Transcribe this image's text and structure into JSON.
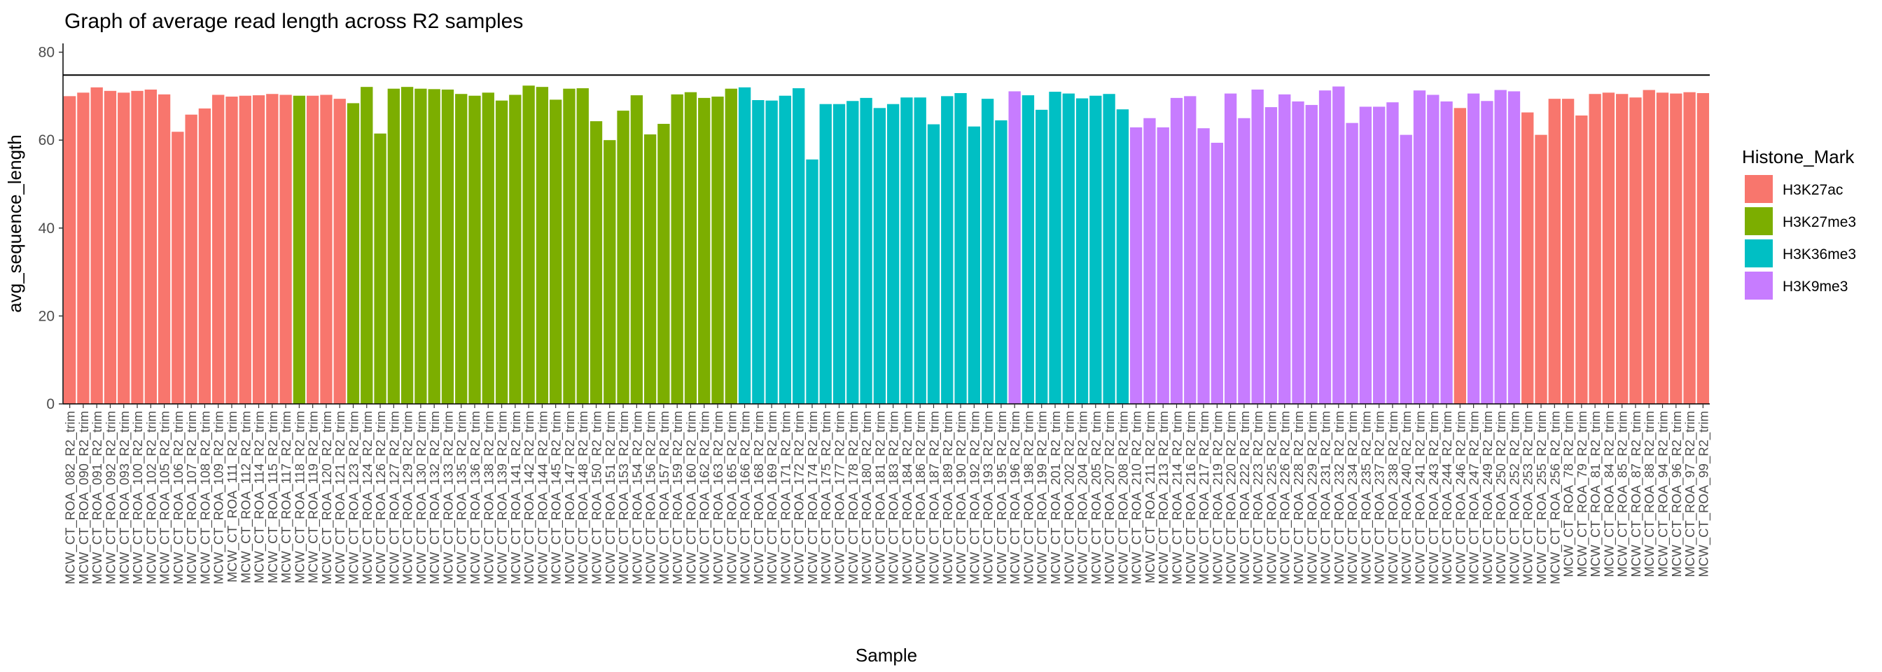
{
  "chart_data": {
    "type": "bar",
    "title": "Graph of average read length across R2 samples",
    "xlabel": "Sample",
    "ylabel": "avg_sequence_length",
    "ylim": [
      0,
      82
    ],
    "y_ticks": [
      0,
      20,
      40,
      60,
      80
    ],
    "reference_line_y": 74.8,
    "grid": false,
    "legend_position": "right",
    "legend_title": "Histone_Mark",
    "legend": [
      {
        "name": "H3K27ac",
        "color": "#F8766D"
      },
      {
        "name": "H3K27me3",
        "color": "#7CAE00"
      },
      {
        "name": "H3K36me3",
        "color": "#00BFC4"
      },
      {
        "name": "H3K9me3",
        "color": "#C77CFF"
      }
    ],
    "bars": [
      {
        "label": "MCW_CT_ROA_082_R2_trim",
        "value": 70.0,
        "group": "H3K27ac"
      },
      {
        "label": "MCW_CT_ROA_090_R2_trim",
        "value": 70.8,
        "group": "H3K27ac"
      },
      {
        "label": "MCW_CT_ROA_091_R2_trim",
        "value": 72.0,
        "group": "H3K27ac"
      },
      {
        "label": "MCW_CT_ROA_092_R2_trim",
        "value": 71.2,
        "group": "H3K27ac"
      },
      {
        "label": "MCW_CT_ROA_093_R2_trim",
        "value": 70.8,
        "group": "H3K27ac"
      },
      {
        "label": "MCW_CT_ROA_100_R2_trim",
        "value": 71.2,
        "group": "H3K27ac"
      },
      {
        "label": "MCW_CT_ROA_102_R2_trim",
        "value": 71.5,
        "group": "H3K27ac"
      },
      {
        "label": "MCW_CT_ROA_105_R2_trim",
        "value": 70.4,
        "group": "H3K27ac"
      },
      {
        "label": "MCW_CT_ROA_106_R2_trim",
        "value": 61.9,
        "group": "H3K27ac"
      },
      {
        "label": "MCW_CT_ROA_107_R2_trim",
        "value": 65.8,
        "group": "H3K27ac"
      },
      {
        "label": "MCW_CT_ROA_108_R2_trim",
        "value": 67.2,
        "group": "H3K27ac"
      },
      {
        "label": "MCW_CT_ROA_109_R2_trim",
        "value": 70.3,
        "group": "H3K27ac"
      },
      {
        "label": "MCW_CT_ROA_111_R2_trim",
        "value": 69.9,
        "group": "H3K27ac"
      },
      {
        "label": "MCW_CT_ROA_112_R2_trim",
        "value": 70.1,
        "group": "H3K27ac"
      },
      {
        "label": "MCW_CT_ROA_114_R2_trim",
        "value": 70.2,
        "group": "H3K27ac"
      },
      {
        "label": "MCW_CT_ROA_115_R2_trim",
        "value": 70.5,
        "group": "H3K27ac"
      },
      {
        "label": "MCW_CT_ROA_117_R2_trim",
        "value": 70.3,
        "group": "H3K27ac"
      },
      {
        "label": "MCW_CT_ROA_118_R2_trim",
        "value": 70.1,
        "group": "H3K27me3"
      },
      {
        "label": "MCW_CT_ROA_119_R2_trim",
        "value": 70.1,
        "group": "H3K27ac"
      },
      {
        "label": "MCW_CT_ROA_120_R2_trim",
        "value": 70.3,
        "group": "H3K27ac"
      },
      {
        "label": "MCW_CT_ROA_121_R2_trim",
        "value": 69.4,
        "group": "H3K27ac"
      },
      {
        "label": "MCW_CT_ROA_123_R2_trim",
        "value": 68.4,
        "group": "H3K27me3"
      },
      {
        "label": "MCW_CT_ROA_124_R2_trim",
        "value": 72.1,
        "group": "H3K27me3"
      },
      {
        "label": "MCW_CT_ROA_126_R2_trim",
        "value": 61.5,
        "group": "H3K27me3"
      },
      {
        "label": "MCW_CT_ROA_127_R2_trim",
        "value": 71.7,
        "group": "H3K27me3"
      },
      {
        "label": "MCW_CT_ROA_129_R2_trim",
        "value": 72.1,
        "group": "H3K27me3"
      },
      {
        "label": "MCW_CT_ROA_130_R2_trim",
        "value": 71.7,
        "group": "H3K27me3"
      },
      {
        "label": "MCW_CT_ROA_132_R2_trim",
        "value": 71.6,
        "group": "H3K27me3"
      },
      {
        "label": "MCW_CT_ROA_133_R2_trim",
        "value": 71.5,
        "group": "H3K27me3"
      },
      {
        "label": "MCW_CT_ROA_135_R2_trim",
        "value": 70.5,
        "group": "H3K27me3"
      },
      {
        "label": "MCW_CT_ROA_136_R2_trim",
        "value": 70.1,
        "group": "H3K27me3"
      },
      {
        "label": "MCW_CT_ROA_138_R2_trim",
        "value": 70.8,
        "group": "H3K27me3"
      },
      {
        "label": "MCW_CT_ROA_139_R2_trim",
        "value": 69.0,
        "group": "H3K27me3"
      },
      {
        "label": "MCW_CT_ROA_141_R2_trim",
        "value": 70.3,
        "group": "H3K27me3"
      },
      {
        "label": "MCW_CT_ROA_142_R2_trim",
        "value": 72.4,
        "group": "H3K27me3"
      },
      {
        "label": "MCW_CT_ROA_144_R2_trim",
        "value": 72.1,
        "group": "H3K27me3"
      },
      {
        "label": "MCW_CT_ROA_145_R2_trim",
        "value": 69.2,
        "group": "H3K27me3"
      },
      {
        "label": "MCW_CT_ROA_147_R2_trim",
        "value": 71.7,
        "group": "H3K27me3"
      },
      {
        "label": "MCW_CT_ROA_148_R2_trim",
        "value": 71.8,
        "group": "H3K27me3"
      },
      {
        "label": "MCW_CT_ROA_150_R2_trim",
        "value": 64.3,
        "group": "H3K27me3"
      },
      {
        "label": "MCW_CT_ROA_151_R2_trim",
        "value": 60.0,
        "group": "H3K27me3"
      },
      {
        "label": "MCW_CT_ROA_153_R2_trim",
        "value": 66.7,
        "group": "H3K27me3"
      },
      {
        "label": "MCW_CT_ROA_154_R2_trim",
        "value": 70.2,
        "group": "H3K27me3"
      },
      {
        "label": "MCW_CT_ROA_156_R2_trim",
        "value": 61.3,
        "group": "H3K27me3"
      },
      {
        "label": "MCW_CT_ROA_157_R2_trim",
        "value": 63.7,
        "group": "H3K27me3"
      },
      {
        "label": "MCW_CT_ROA_159_R2_trim",
        "value": 70.4,
        "group": "H3K27me3"
      },
      {
        "label": "MCW_CT_ROA_160_R2_trim",
        "value": 70.9,
        "group": "H3K27me3"
      },
      {
        "label": "MCW_CT_ROA_162_R2_trim",
        "value": 69.6,
        "group": "H3K27me3"
      },
      {
        "label": "MCW_CT_ROA_163_R2_trim",
        "value": 69.9,
        "group": "H3K27me3"
      },
      {
        "label": "MCW_CT_ROA_165_R2_trim",
        "value": 71.7,
        "group": "H3K27me3"
      },
      {
        "label": "MCW_CT_ROA_166_R2_trim",
        "value": 72.0,
        "group": "H3K36me3"
      },
      {
        "label": "MCW_CT_ROA_168_R2_trim",
        "value": 69.1,
        "group": "H3K36me3"
      },
      {
        "label": "MCW_CT_ROA_169_R2_trim",
        "value": 69.0,
        "group": "H3K36me3"
      },
      {
        "label": "MCW_CT_ROA_171_R2_trim",
        "value": 70.1,
        "group": "H3K36me3"
      },
      {
        "label": "MCW_CT_ROA_172_R2_trim",
        "value": 71.8,
        "group": "H3K36me3"
      },
      {
        "label": "MCW_CT_ROA_174_R2_trim",
        "value": 55.6,
        "group": "H3K36me3"
      },
      {
        "label": "MCW_CT_ROA_175_R2_trim",
        "value": 68.2,
        "group": "H3K36me3"
      },
      {
        "label": "MCW_CT_ROA_177_R2_trim",
        "value": 68.2,
        "group": "H3K36me3"
      },
      {
        "label": "MCW_CT_ROA_178_R2_trim",
        "value": 68.9,
        "group": "H3K36me3"
      },
      {
        "label": "MCW_CT_ROA_180_R2_trim",
        "value": 69.6,
        "group": "H3K36me3"
      },
      {
        "label": "MCW_CT_ROA_181_R2_trim",
        "value": 67.3,
        "group": "H3K36me3"
      },
      {
        "label": "MCW_CT_ROA_183_R2_trim",
        "value": 68.2,
        "group": "H3K36me3"
      },
      {
        "label": "MCW_CT_ROA_184_R2_trim",
        "value": 69.7,
        "group": "H3K36me3"
      },
      {
        "label": "MCW_CT_ROA_186_R2_trim",
        "value": 69.7,
        "group": "H3K36me3"
      },
      {
        "label": "MCW_CT_ROA_187_R2_trim",
        "value": 63.6,
        "group": "H3K36me3"
      },
      {
        "label": "MCW_CT_ROA_189_R2_trim",
        "value": 70.0,
        "group": "H3K36me3"
      },
      {
        "label": "MCW_CT_ROA_190_R2_trim",
        "value": 70.7,
        "group": "H3K36me3"
      },
      {
        "label": "MCW_CT_ROA_192_R2_trim",
        "value": 63.1,
        "group": "H3K36me3"
      },
      {
        "label": "MCW_CT_ROA_193_R2_trim",
        "value": 69.4,
        "group": "H3K36me3"
      },
      {
        "label": "MCW_CT_ROA_195_R2_trim",
        "value": 64.5,
        "group": "H3K36me3"
      },
      {
        "label": "MCW_CT_ROA_196_R2_trim",
        "value": 71.1,
        "group": "H3K9me3"
      },
      {
        "label": "MCW_CT_ROA_198_R2_trim",
        "value": 70.2,
        "group": "H3K36me3"
      },
      {
        "label": "MCW_CT_ROA_199_R2_trim",
        "value": 66.9,
        "group": "H3K36me3"
      },
      {
        "label": "MCW_CT_ROA_201_R2_trim",
        "value": 71.0,
        "group": "H3K36me3"
      },
      {
        "label": "MCW_CT_ROA_202_R2_trim",
        "value": 70.6,
        "group": "H3K36me3"
      },
      {
        "label": "MCW_CT_ROA_204_R2_trim",
        "value": 69.5,
        "group": "H3K36me3"
      },
      {
        "label": "MCW_CT_ROA_205_R2_trim",
        "value": 70.1,
        "group": "H3K36me3"
      },
      {
        "label": "MCW_CT_ROA_207_R2_trim",
        "value": 70.5,
        "group": "H3K36me3"
      },
      {
        "label": "MCW_CT_ROA_208_R2_trim",
        "value": 67.0,
        "group": "H3K36me3"
      },
      {
        "label": "MCW_CT_ROA_210_R2_trim",
        "value": 62.9,
        "group": "H3K9me3"
      },
      {
        "label": "MCW_CT_ROA_211_R2_trim",
        "value": 65.0,
        "group": "H3K9me3"
      },
      {
        "label": "MCW_CT_ROA_213_R2_trim",
        "value": 62.9,
        "group": "H3K9me3"
      },
      {
        "label": "MCW_CT_ROA_214_R2_trim",
        "value": 69.6,
        "group": "H3K9me3"
      },
      {
        "label": "MCW_CT_ROA_216_R2_trim",
        "value": 70.0,
        "group": "H3K9me3"
      },
      {
        "label": "MCW_CT_ROA_217_R2_trim",
        "value": 62.7,
        "group": "H3K9me3"
      },
      {
        "label": "MCW_CT_ROA_219_R2_trim",
        "value": 59.4,
        "group": "H3K9me3"
      },
      {
        "label": "MCW_CT_ROA_220_R2_trim",
        "value": 70.6,
        "group": "H3K9me3"
      },
      {
        "label": "MCW_CT_ROA_222_R2_trim",
        "value": 65.0,
        "group": "H3K9me3"
      },
      {
        "label": "MCW_CT_ROA_223_R2_trim",
        "value": 71.5,
        "group": "H3K9me3"
      },
      {
        "label": "MCW_CT_ROA_225_R2_trim",
        "value": 67.5,
        "group": "H3K9me3"
      },
      {
        "label": "MCW_CT_ROA_226_R2_trim",
        "value": 70.4,
        "group": "H3K9me3"
      },
      {
        "label": "MCW_CT_ROA_228_R2_trim",
        "value": 68.8,
        "group": "H3K9me3"
      },
      {
        "label": "MCW_CT_ROA_229_R2_trim",
        "value": 68.0,
        "group": "H3K9me3"
      },
      {
        "label": "MCW_CT_ROA_231_R2_trim",
        "value": 71.3,
        "group": "H3K9me3"
      },
      {
        "label": "MCW_CT_ROA_232_R2_trim",
        "value": 72.2,
        "group": "H3K9me3"
      },
      {
        "label": "MCW_CT_ROA_234_R2_trim",
        "value": 63.9,
        "group": "H3K9me3"
      },
      {
        "label": "MCW_CT_ROA_235_R2_trim",
        "value": 67.6,
        "group": "H3K9me3"
      },
      {
        "label": "MCW_CT_ROA_237_R2_trim",
        "value": 67.6,
        "group": "H3K9me3"
      },
      {
        "label": "MCW_CT_ROA_238_R2_trim",
        "value": 68.6,
        "group": "H3K9me3"
      },
      {
        "label": "MCW_CT_ROA_240_R2_trim",
        "value": 61.2,
        "group": "H3K9me3"
      },
      {
        "label": "MCW_CT_ROA_241_R2_trim",
        "value": 71.3,
        "group": "H3K9me3"
      },
      {
        "label": "MCW_CT_ROA_243_R2_trim",
        "value": 70.3,
        "group": "H3K9me3"
      },
      {
        "label": "MCW_CT_ROA_244_R2_trim",
        "value": 68.8,
        "group": "H3K9me3"
      },
      {
        "label": "MCW_CT_ROA_246_R2_trim",
        "value": 67.3,
        "group": "H3K27ac"
      },
      {
        "label": "MCW_CT_ROA_247_R2_trim",
        "value": 70.6,
        "group": "H3K9me3"
      },
      {
        "label": "MCW_CT_ROA_249_R2_trim",
        "value": 68.9,
        "group": "H3K9me3"
      },
      {
        "label": "MCW_CT_ROA_250_R2_trim",
        "value": 71.4,
        "group": "H3K9me3"
      },
      {
        "label": "MCW_CT_ROA_252_R2_trim",
        "value": 71.1,
        "group": "H3K9me3"
      },
      {
        "label": "MCW_CT_ROA_253_R2_trim",
        "value": 66.3,
        "group": "H3K27ac"
      },
      {
        "label": "MCW_CT_ROA_255_R2_trim",
        "value": 61.2,
        "group": "H3K27ac"
      },
      {
        "label": "MCW_CT_ROA_256_R2_trim",
        "value": 69.4,
        "group": "H3K27ac"
      },
      {
        "label": "MCW_CT_ROA_78_R2_trim",
        "value": 69.4,
        "group": "H3K27ac"
      },
      {
        "label": "MCW_CT_ROA_79_R2_trim",
        "value": 65.6,
        "group": "H3K27ac"
      },
      {
        "label": "MCW_CT_ROA_81_R2_trim",
        "value": 70.5,
        "group": "H3K27ac"
      },
      {
        "label": "MCW_CT_ROA_84_R2_trim",
        "value": 70.8,
        "group": "H3K27ac"
      },
      {
        "label": "MCW_CT_ROA_85_R2_trim",
        "value": 70.5,
        "group": "H3K27ac"
      },
      {
        "label": "MCW_CT_ROA_87_R2_trim",
        "value": 69.7,
        "group": "H3K27ac"
      },
      {
        "label": "MCW_CT_ROA_88_R2_trim",
        "value": 71.4,
        "group": "H3K27ac"
      },
      {
        "label": "MCW_CT_ROA_94_R2_trim",
        "value": 70.8,
        "group": "H3K27ac"
      },
      {
        "label": "MCW_CT_ROA_96_R2_trim",
        "value": 70.6,
        "group": "H3K27ac"
      },
      {
        "label": "MCW_CT_ROA_97_R2_trim",
        "value": 70.9,
        "group": "H3K27ac"
      },
      {
        "label": "MCW_CT_ROA_99_R2_trim",
        "value": 70.7,
        "group": "H3K27ac"
      }
    ]
  }
}
